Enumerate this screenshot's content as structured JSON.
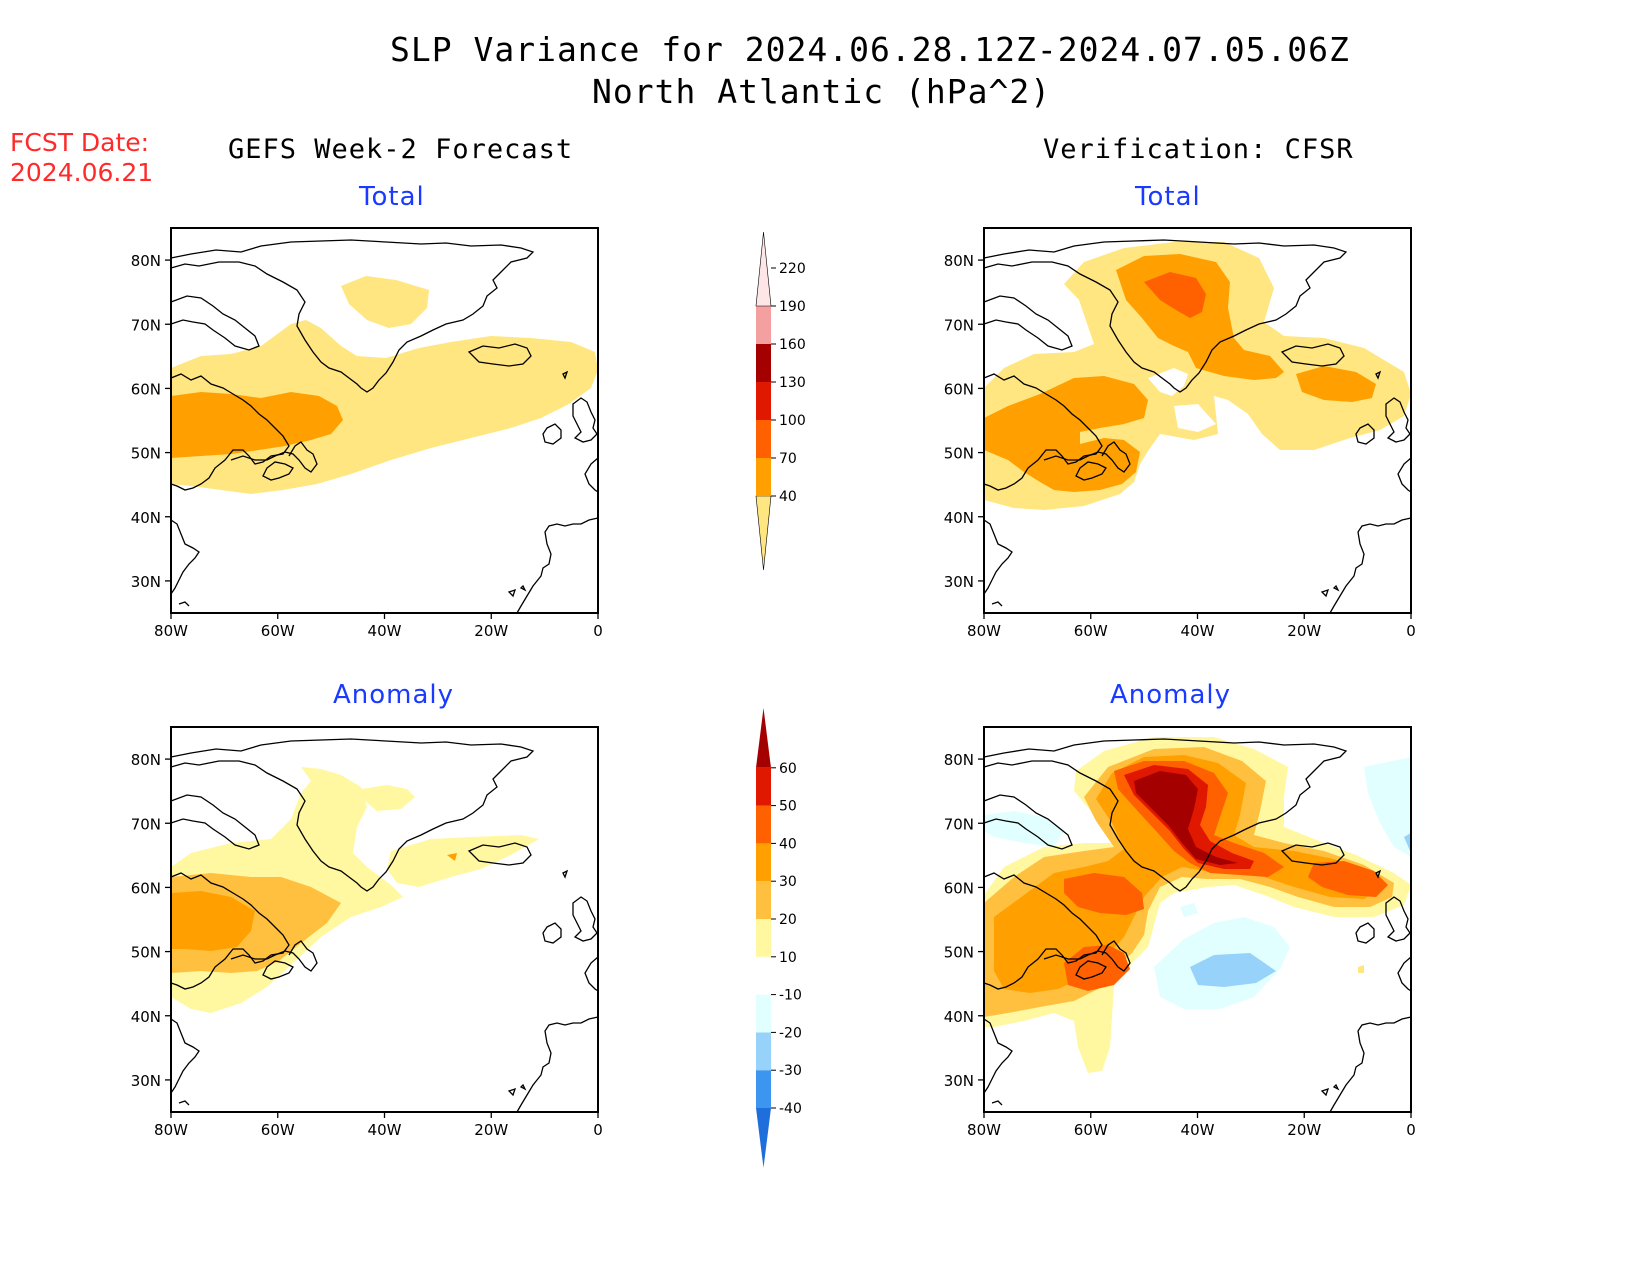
{
  "title": {
    "line1": "SLP Variance for 2024.06.28.12Z-2024.07.05.06Z",
    "line2": "North Atlantic (hPa^2)"
  },
  "fcst_date": {
    "label": "FCST Date:",
    "value": "2024.06.21"
  },
  "columns": {
    "left": "GEFS Week-2 Forecast",
    "right": "Verification: CFSR"
  },
  "rows": {
    "top": "Total",
    "bottom": "Anomaly"
  },
  "map_axes": {
    "lat_labels": [
      "80N",
      "70N",
      "60N",
      "50N",
      "40N",
      "30N"
    ],
    "lat_values": [
      80,
      70,
      60,
      50,
      40,
      30
    ],
    "lon_labels": [
      "80W",
      "60W",
      "40W",
      "20W",
      "0"
    ],
    "lon_values": [
      -80,
      -60,
      -40,
      -20,
      0
    ],
    "lon_range": [
      -80,
      0
    ],
    "lat_range": [
      25,
      85
    ]
  },
  "colorbars": {
    "total": {
      "levels": [
        "40",
        "70",
        "100",
        "130",
        "160",
        "190",
        "220"
      ],
      "colors": [
        "#ffe680",
        "#ffa000",
        "#ff6000",
        "#e11800",
        "#a50000",
        "#f4a0a0",
        "#ffe6e6"
      ]
    },
    "anomaly": {
      "levels": [
        "-40",
        "-30",
        "-20",
        "-10",
        "10",
        "20",
        "30",
        "40",
        "50",
        "60"
      ],
      "colors": [
        "#1e6edc",
        "#3c96f0",
        "#96d2fa",
        "#e1ffff",
        "#ffffff",
        "#fff8a0",
        "#ffc040",
        "#ffa000",
        "#ff6000",
        "#e11800",
        "#a50000"
      ]
    }
  },
  "colors": {
    "c1": "#ffe680",
    "c2": "#ffa000",
    "c3": "#ff6000",
    "c4": "#e11800",
    "c5": "#a50000",
    "a_light_yellow": "#fff8a0",
    "a_light_orange": "#ffc040",
    "neg1": "#e1ffff",
    "neg2": "#96d2fa"
  },
  "chart_data": [
    {
      "type": "heatmap",
      "panel": "GEFS Week-2 Forecast - Total",
      "units": "hPa^2",
      "regions": [
        {
          "level": "40-70",
          "area": "Labrador Sea to Iceland band, 45N-65N; patch over central Greenland ~75N 40W"
        },
        {
          "level": "70-100",
          "area": "Labrador / Newfoundland, 50N-58N, 80W-50W"
        }
      ]
    },
    {
      "type": "heatmap",
      "panel": "Verification: CFSR - Total",
      "units": "hPa^2",
      "regions": [
        {
          "level": "40-70",
          "area": "broad band 45N-82N, 80W-0"
        },
        {
          "level": "70-100",
          "area": "Labrador, east Greenland 65N-80N, Denmark Strait, south of Iceland"
        },
        {
          "level": "100-130",
          "area": "northeast Greenland ~75N 45W"
        }
      ]
    },
    {
      "type": "heatmap",
      "panel": "GEFS Week-2 Forecast - Anomaly",
      "units": "hPa^2",
      "regions": [
        {
          "level": "10-20",
          "area": "48N-66N, 80W-40W; east Greenland; south Iceland"
        },
        {
          "level": "20-30",
          "area": "Labrador 50N-62N"
        },
        {
          "level": "30-40",
          "area": "Labrador core ~55N 70W"
        }
      ]
    },
    {
      "type": "heatmap",
      "panel": "Verification: CFSR - Anomaly",
      "units": "hPa^2",
      "regions": [
        {
          "level": "50-60",
          "area": "northeast Greenland ~75N 45W"
        },
        {
          "level": "40-50",
          "area": "Greenland / Denmark Strait, Labrador, south Iceland"
        },
        {
          "level": "-10 to -20",
          "area": "mid-Atlantic ~45N 35W"
        },
        {
          "level": "-20 to -30",
          "area": "~45N 35W core"
        }
      ]
    }
  ]
}
